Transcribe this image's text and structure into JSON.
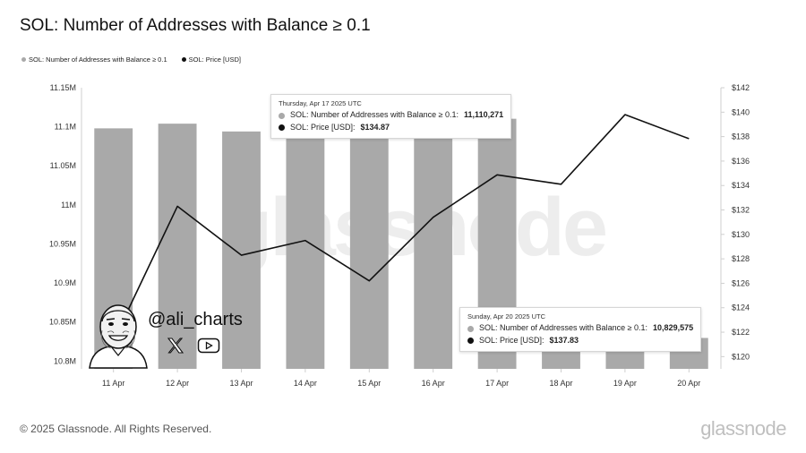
{
  "header": {
    "title": "SOL: Number of Addresses with Balance ≥ 0.1"
  },
  "legend": {
    "items": [
      {
        "label": "SOL: Number of Addresses with Balance ≥ 0.1",
        "color": "#a9a9a9"
      },
      {
        "label": "SOL: Price [USD]",
        "color": "#111111"
      }
    ]
  },
  "tooltips": [
    {
      "date": "Thursday, Apr 17 2025 UTC",
      "addr_label": "SOL: Number of Addresses with Balance ≥ 0.1:",
      "addr_value": "11,110,271",
      "price_label": "SOL: Price [USD]:",
      "price_value": "$134.87"
    },
    {
      "date": "Sunday, Apr 20 2025 UTC",
      "addr_label": "SOL: Number of Addresses with Balance ≥ 0.1:",
      "addr_value": "10,829,575",
      "price_label": "SOL: Price [USD]:",
      "price_value": "$137.83"
    }
  ],
  "watermark": {
    "text": "glassnode"
  },
  "author": {
    "handle": "@ali_charts",
    "x_icon": "x-logo-icon",
    "video_icon": "play-icon"
  },
  "footer": {
    "copyright": "© 2025 Glassnode. All Rights Reserved.",
    "brand": "glassnode"
  },
  "chart_data": {
    "type": "bar",
    "categories": [
      "11 Apr",
      "12 Apr",
      "13 Apr",
      "14 Apr",
      "15 Apr",
      "16 Apr",
      "17 Apr",
      "18 Apr",
      "19 Apr",
      "20 Apr"
    ],
    "series": [
      {
        "name": "SOL: Number of Addresses with Balance ≥ 0.1",
        "type": "bar",
        "axis": "left",
        "color": "#a9a9a9",
        "values": [
          11098000,
          11104000,
          11094000,
          11100000,
          11105000,
          11108000,
          11110271,
          10848000,
          10842000,
          10829575
        ]
      },
      {
        "name": "SOL: Price [USD]",
        "type": "line",
        "axis": "right",
        "color": "#111111",
        "values": [
          121.3,
          132.3,
          128.3,
          129.5,
          126.2,
          131.4,
          134.87,
          134.1,
          139.8,
          137.83
        ]
      }
    ],
    "y_left": {
      "ylim": [
        10790000,
        11150000
      ],
      "ticks": [
        10800000,
        10850000,
        10900000,
        10950000,
        11000000,
        11050000,
        11100000,
        11150000
      ],
      "tick_labels": [
        "10.8M",
        "10.85M",
        "10.9M",
        "10.95M",
        "11M",
        "11.05M",
        "11.1M",
        "11.15M"
      ]
    },
    "y_right": {
      "ylim": [
        119,
        142
      ],
      "ticks": [
        120,
        122,
        124,
        126,
        128,
        130,
        132,
        134,
        136,
        138,
        140,
        142
      ],
      "tick_labels": [
        "$120",
        "$122",
        "$124",
        "$126",
        "$128",
        "$130",
        "$132",
        "$134",
        "$136",
        "$138",
        "$140",
        "$142"
      ]
    },
    "grid": false,
    "legend_position": "top-left"
  }
}
